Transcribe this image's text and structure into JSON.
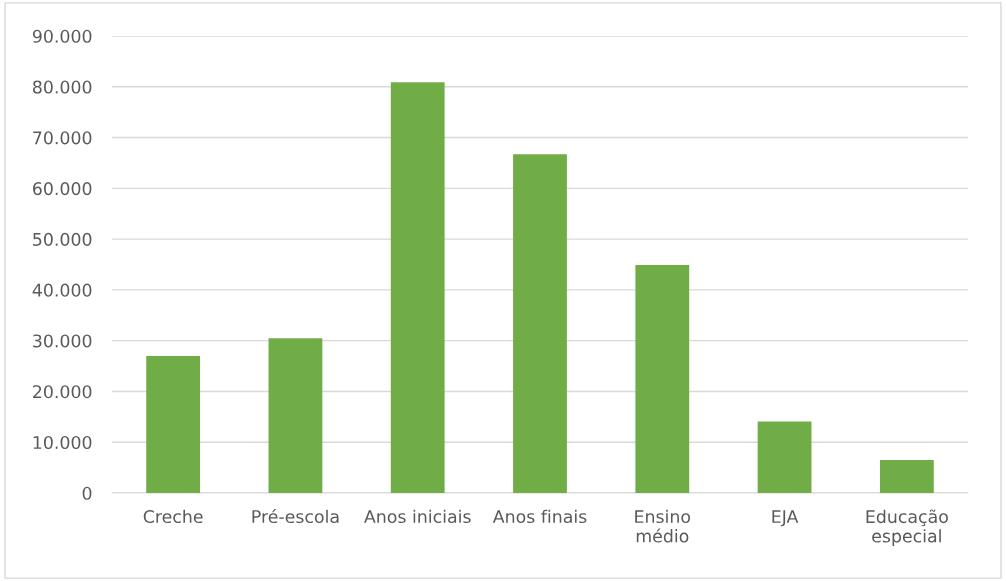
{
  "chart_data": {
    "type": "bar",
    "categories": [
      "Creche",
      "Pré-escola",
      "Anos iniciais",
      "Anos finais",
      "Ensino\nmédio",
      "EJA",
      "Educação\nespecial"
    ],
    "values": [
      27000,
      30500,
      80900,
      66700,
      44900,
      14100,
      6500
    ],
    "color": "#70ad47",
    "ylim": [
      0,
      90000
    ],
    "yticks": [
      {
        "value": 0,
        "label": "0"
      },
      {
        "value": 10000,
        "label": "10.000"
      },
      {
        "value": 20000,
        "label": "20.000"
      },
      {
        "value": 30000,
        "label": "30.000"
      },
      {
        "value": 40000,
        "label": "40.000"
      },
      {
        "value": 50000,
        "label": "50.000"
      },
      {
        "value": 60000,
        "label": "60.000"
      },
      {
        "value": 70000,
        "label": "70.000"
      },
      {
        "value": 80000,
        "label": "80.000"
      },
      {
        "value": 90000,
        "label": "90.000"
      }
    ],
    "grid": "y"
  }
}
